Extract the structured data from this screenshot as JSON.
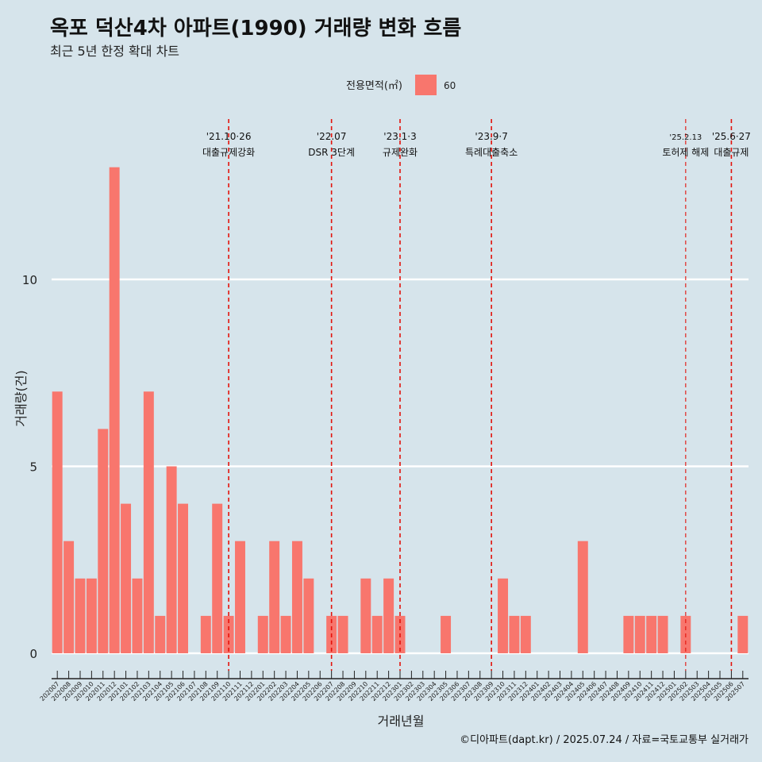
{
  "title": "옥포 덕산4차 아파트(1990) 거래량 변화 흐름",
  "subtitle": "최근 5년 한정 확대 차트",
  "caption": "©디아파트(dapt.kr) / 2025.07.24 / 자료=국토교통부 실거래가",
  "legend": {
    "title": "전용면적(㎡)",
    "label": "60",
    "color": "#f8766d"
  },
  "chart_data": {
    "type": "bar",
    "xlabel": "거래년월",
    "ylabel": "거래량(건)",
    "yticks": [
      0,
      5,
      10
    ],
    "ylim": [
      -0.5,
      14
    ],
    "grid": true,
    "bar_color": "#f8766d",
    "categories": [
      "202007",
      "202008",
      "202009",
      "202010",
      "202011",
      "202012",
      "202101",
      "202102",
      "202103",
      "202104",
      "202105",
      "202106",
      "202107",
      "202108",
      "202109",
      "202110",
      "202111",
      "202112",
      "202201",
      "202202",
      "202203",
      "202204",
      "202205",
      "202206",
      "202207",
      "202208",
      "202209",
      "202210",
      "202211",
      "202212",
      "202301",
      "202302",
      "202303",
      "202304",
      "202305",
      "202306",
      "202307",
      "202308",
      "202309",
      "202310",
      "202311",
      "202312",
      "202401",
      "202402",
      "202403",
      "202404",
      "202405",
      "202406",
      "202407",
      "202408",
      "202409",
      "202410",
      "202411",
      "202412",
      "202501",
      "202502",
      "202503",
      "202504",
      "202505",
      "202506",
      "202507"
    ],
    "series": [
      {
        "name": "60",
        "values": [
          7,
          3,
          2,
          2,
          6,
          13,
          4,
          2,
          7,
          1,
          5,
          4,
          0,
          1,
          4,
          1,
          3,
          0,
          1,
          3,
          1,
          3,
          2,
          0,
          1,
          1,
          0,
          2,
          1,
          2,
          1,
          0,
          0,
          0,
          1,
          0,
          0,
          0,
          0,
          2,
          1,
          1,
          0,
          0,
          0,
          0,
          3,
          0,
          0,
          0,
          1,
          1,
          1,
          1,
          0,
          1,
          0,
          0,
          0,
          0,
          1
        ]
      }
    ],
    "events": [
      {
        "date": "'21.10·26",
        "label": "대출규제강화",
        "category": "202110"
      },
      {
        "date": "'22.07",
        "label": "DSR 3단계",
        "category": "202207"
      },
      {
        "date": "'23.1·3",
        "label": "규제완화",
        "category": "202301"
      },
      {
        "date": "'23.9·7",
        "label": "특례대출축소",
        "category": "202309"
      },
      {
        "date": "'25.2.13",
        "label": "토허제 해제",
        "category": "202502"
      },
      {
        "date": "'25.6·27",
        "label": "대출규제",
        "category": "202506"
      }
    ],
    "event_line_color": "#e3120b"
  }
}
